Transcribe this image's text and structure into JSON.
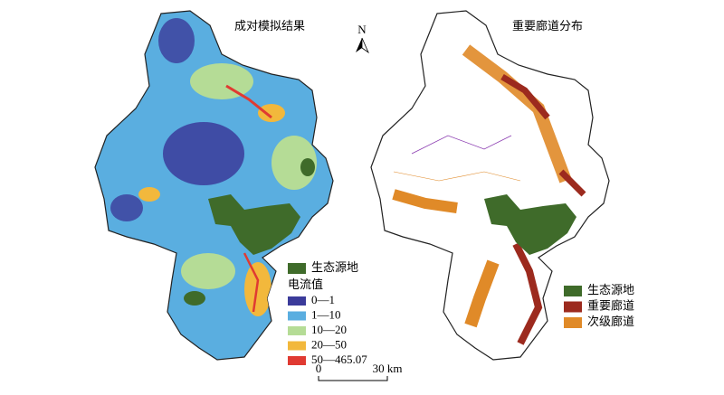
{
  "left_map": {
    "title": "成对模拟结果",
    "legend": {
      "source": {
        "label": "生态源地",
        "color": "#3f6b2a"
      },
      "heading": "电流值",
      "items": [
        {
          "label": "0—1",
          "color": "#3b3b9a"
        },
        {
          "label": "1—10",
          "color": "#5aaee0"
        },
        {
          "label": "10—20",
          "color": "#b5dc96"
        },
        {
          "label": "20—50",
          "color": "#f2b83c"
        },
        {
          "label": "50—465.07",
          "color": "#e03a32"
        }
      ]
    }
  },
  "right_map": {
    "title": "重要廊道分布",
    "legend": {
      "items": [
        {
          "label": "生态源地",
          "color": "#3f6b2a"
        },
        {
          "label": "重要廊道",
          "color": "#9c2a1e"
        },
        {
          "label": "次级廊道",
          "color": "#e08a28"
        }
      ]
    }
  },
  "north_arrow": {
    "label": "N"
  },
  "scale_bar": {
    "start": "0",
    "end": "30 km"
  }
}
